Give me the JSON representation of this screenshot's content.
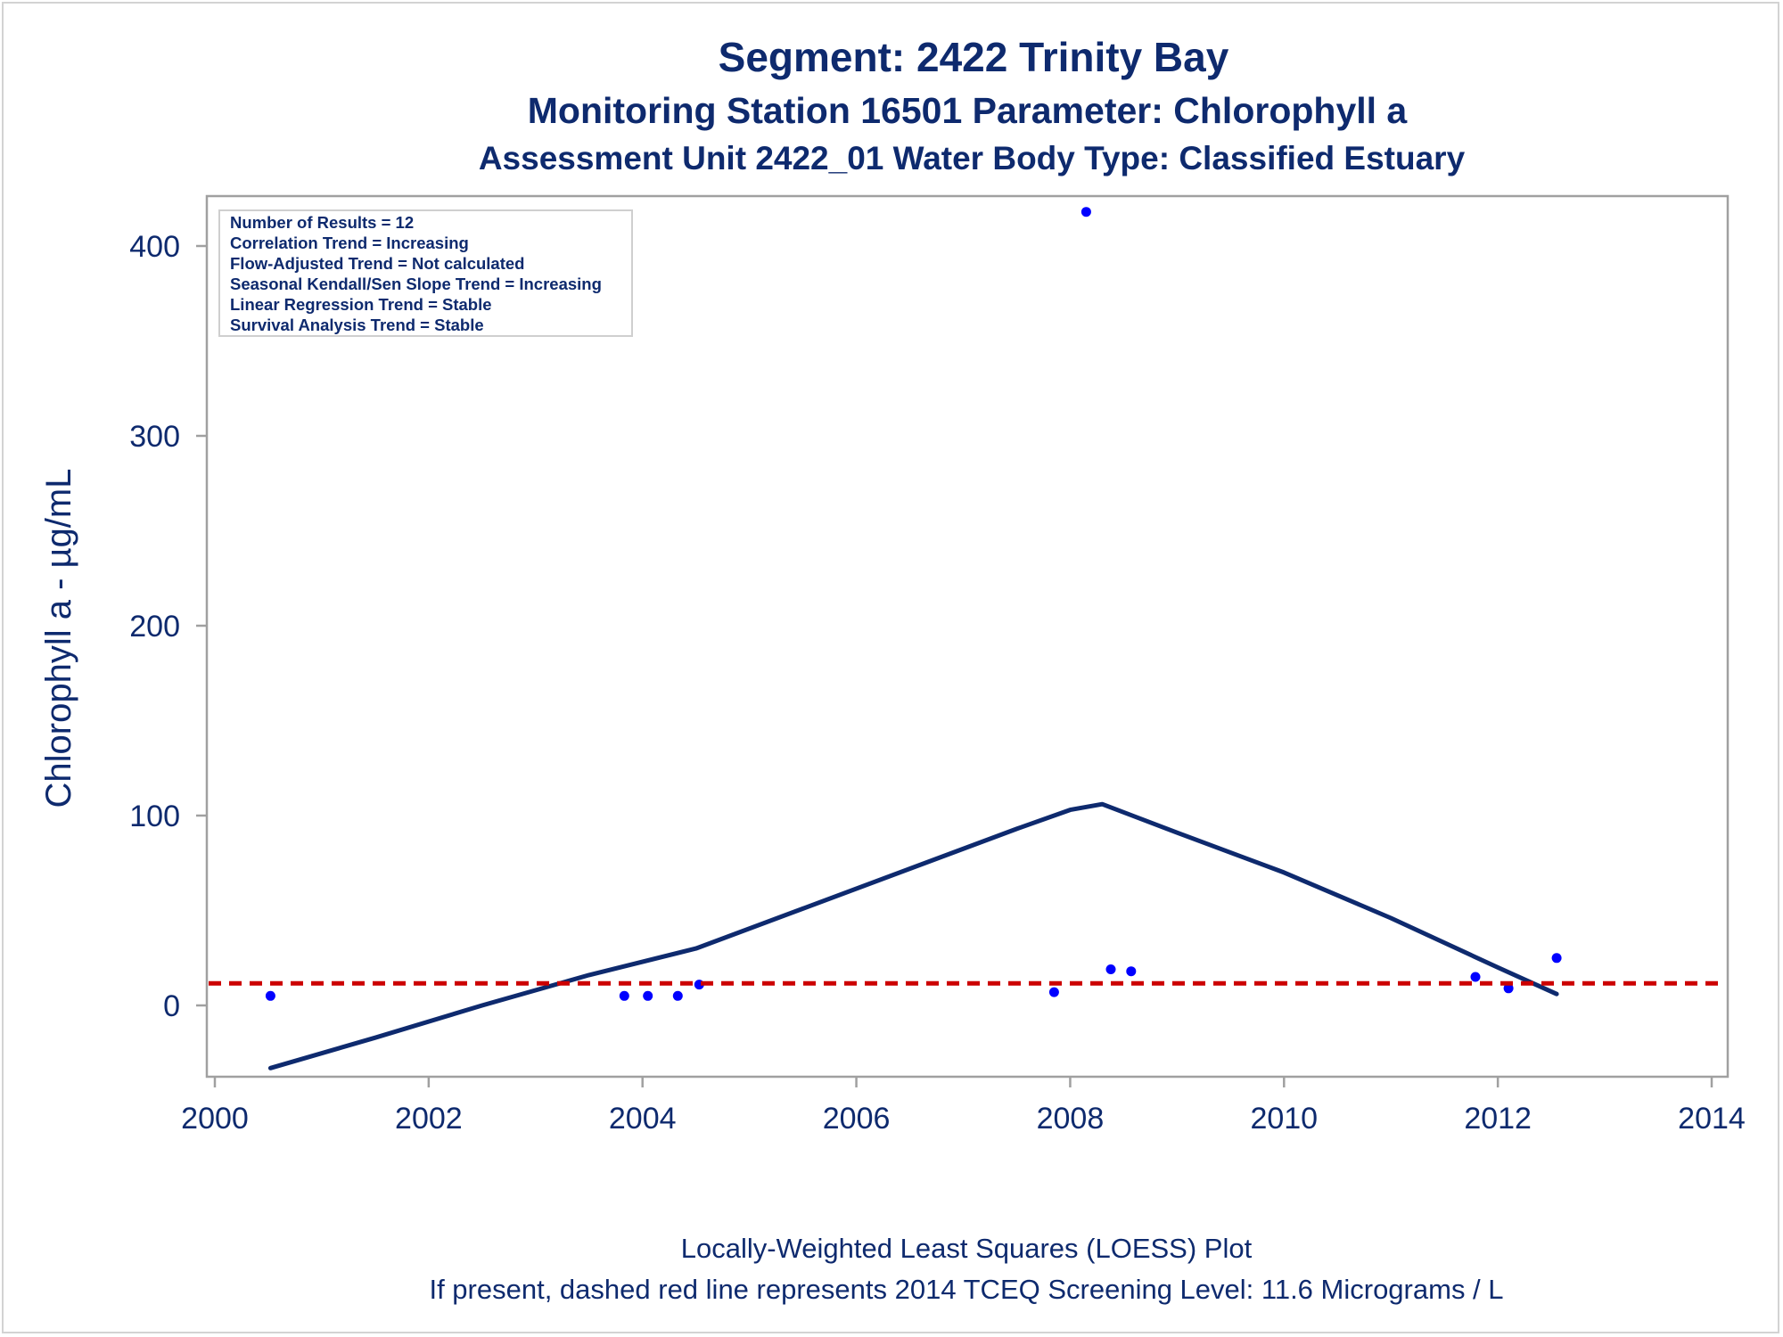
{
  "chart_data": {
    "type": "scatter",
    "title": "Segment: 2422  Trinity Bay",
    "subtitle": "Monitoring Station 16501 Parameter: Chlorophyll a",
    "subtitle2": "Assessment Unit 2422_01   Water Body Type: Classified Estuary",
    "xlabel": "",
    "ylabel": "Chlorophyll a -  µg/mL",
    "xlim": [
      2000,
      2014
    ],
    "ylim": [
      -38,
      428
    ],
    "xticks": [
      "2000",
      "2002",
      "2004",
      "2006",
      "2008",
      "2010",
      "2012",
      "2014"
    ],
    "xtick_values": [
      2000,
      2002,
      2004,
      2006,
      2008,
      2010,
      2012,
      2014
    ],
    "yticks": [
      "0",
      "100",
      "200",
      "300",
      "400"
    ],
    "ytick_values": [
      0,
      100,
      200,
      300,
      400
    ],
    "grid": false,
    "inset_box": {
      "position": "top-left",
      "lines": [
        "Number of Results = 12",
        "Correlation Trend = Increasing",
        "Flow-Adjusted Trend = Not calculated",
        "Seasonal Kendall/Sen Slope Trend = Increasing",
        "Linear Regression Trend = Stable",
        "Survival Analysis Trend = Stable"
      ]
    },
    "series": [
      {
        "type": "scatter",
        "color": "#0000ff",
        "x": [
          2000.52,
          2003.83,
          2004.05,
          2004.33,
          2004.53,
          2007.85,
          2008.15,
          2008.38,
          2008.57,
          2011.79,
          2012.1,
          2012.55
        ],
        "y": [
          5,
          5,
          5,
          5,
          11,
          7,
          418,
          19,
          18,
          15,
          9,
          25
        ]
      },
      {
        "type": "line",
        "color": "#0e2a6e",
        "x": [
          2000.52,
          2001.5,
          2002.5,
          2003.5,
          2004.5,
          2005.5,
          2006.5,
          2007.5,
          2008.0,
          2008.3,
          2009.0,
          2010.0,
          2011.0,
          2012.0,
          2012.55
        ],
        "y": [
          -33,
          -17,
          0,
          16,
          30,
          51,
          72,
          93,
          103,
          106,
          91,
          70,
          46,
          20,
          6
        ]
      },
      {
        "type": "hline",
        "color": "#cc0000",
        "dashed": true,
        "y": 11.6
      }
    ],
    "footnotes": [
      "Locally-Weighted Least Squares (LOESS) Plot",
      "If present, dashed red line represents 2014 TCEQ Screening Level: 11.6 Micrograms / L"
    ]
  }
}
